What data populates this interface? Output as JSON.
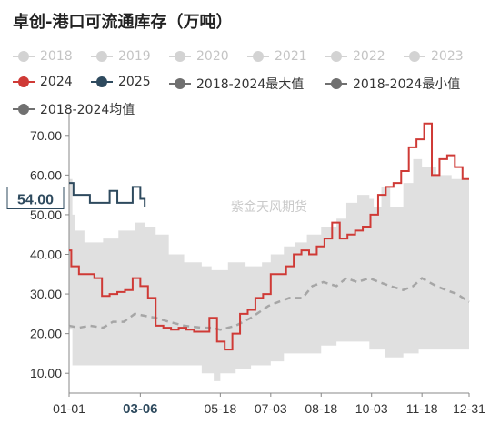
{
  "title": "卓创-港口可流通库存（万吨）",
  "watermark": "紫金天风期货",
  "legend": [
    {
      "label": "2018",
      "color": "#c8c8c8",
      "active": false
    },
    {
      "label": "2019",
      "color": "#c8c8c8",
      "active": false
    },
    {
      "label": "2020",
      "color": "#c8c8c8",
      "active": false
    },
    {
      "label": "2021",
      "color": "#c8c8c8",
      "active": false
    },
    {
      "label": "2022",
      "color": "#c8c8c8",
      "active": false
    },
    {
      "label": "2023",
      "color": "#c8c8c8",
      "active": false
    },
    {
      "label": "2024",
      "color": "#cf3a36",
      "active": true
    },
    {
      "label": "2025",
      "color": "#2e4a5e",
      "active": true
    },
    {
      "label": "2018-2024最大值",
      "color": "#707070",
      "active": true
    },
    {
      "label": "2018-2024最小值",
      "color": "#707070",
      "active": true
    },
    {
      "label": "2018-2024均值",
      "color": "#707070",
      "active": true
    }
  ],
  "chart_data": {
    "type": "line",
    "x_axis": {
      "type": "date",
      "min": "01-01",
      "max": "12-31",
      "tick_labels": [
        "01-01",
        "03-06",
        "05-18",
        "07-03",
        "08-18",
        "10-03",
        "11-18",
        "12-31"
      ],
      "highlight_label": "03-06"
    },
    "y_axis": {
      "min": 5,
      "max": 75,
      "tick_values": [
        10,
        20,
        30,
        40,
        50,
        60,
        70
      ],
      "tick_labels": [
        "10.00",
        "20.00",
        "30.00",
        "40.00",
        "50.00",
        "60.00",
        "70.00"
      ],
      "highlight_value": "54.00"
    },
    "grid": false,
    "series": [
      {
        "name": "2018-2024最大值",
        "style": "band-upper",
        "color": "#e0e0e0",
        "x": [
          "01-01",
          "01-04",
          "01-06",
          "01-15",
          "02-01",
          "02-15",
          "03-01",
          "03-10",
          "03-20",
          "04-01",
          "04-15",
          "05-01",
          "05-10",
          "05-25",
          "06-10",
          "06-25",
          "07-03",
          "07-15",
          "07-25",
          "08-05",
          "08-18",
          "09-01",
          "09-10",
          "09-20",
          "10-01",
          "10-05",
          "10-12",
          "10-20",
          "11-01",
          "11-10",
          "11-18",
          "12-01",
          "12-15",
          "12-31"
        ],
        "y": [
          59,
          50,
          46,
          43,
          44,
          46,
          48,
          47,
          45,
          40,
          38,
          37,
          36,
          38,
          37,
          38,
          40,
          42,
          43,
          45,
          47,
          49,
          53,
          55,
          54,
          52,
          57,
          52,
          58,
          64,
          62,
          60,
          59,
          59
        ]
      },
      {
        "name": "2018-2024最小值",
        "style": "band-lower",
        "color": "#e0e0e0",
        "x": [
          "01-01",
          "01-04",
          "01-20",
          "02-15",
          "03-01",
          "03-15",
          "04-01",
          "04-20",
          "05-01",
          "05-12",
          "05-18",
          "06-01",
          "06-15",
          "07-03",
          "07-15",
          "08-01",
          "08-18",
          "09-01",
          "09-15",
          "10-01",
          "10-15",
          "11-01",
          "11-15",
          "12-01",
          "12-31"
        ],
        "y": [
          21,
          12,
          12,
          12,
          12,
          12,
          12,
          12,
          10,
          8,
          10,
          11,
          12,
          13,
          15,
          15,
          17,
          18,
          18,
          16,
          14,
          15,
          16,
          16,
          17
        ]
      },
      {
        "name": "2018-2024均值",
        "style": "dashed",
        "color": "#a6a6a6",
        "x": [
          "01-01",
          "01-10",
          "01-20",
          "02-01",
          "02-10",
          "02-20",
          "03-01",
          "03-10",
          "03-20",
          "04-01",
          "04-15",
          "05-01",
          "05-10",
          "05-18",
          "06-01",
          "06-15",
          "07-01",
          "07-10",
          "07-20",
          "08-01",
          "08-10",
          "08-20",
          "09-01",
          "09-10",
          "09-20",
          "10-01",
          "10-10",
          "10-20",
          "11-01",
          "11-10",
          "11-18",
          "12-01",
          "12-10",
          "12-20",
          "12-31"
        ],
        "y": [
          22,
          21.5,
          22,
          21.5,
          23,
          23,
          25,
          24.5,
          24,
          23,
          22,
          21.5,
          21.5,
          21,
          22,
          24,
          27,
          28,
          29,
          29,
          32,
          33,
          32,
          34,
          33,
          34,
          33,
          32,
          31,
          32,
          34,
          32,
          31,
          30,
          28
        ]
      },
      {
        "name": "2024",
        "style": "step",
        "color": "#cf3a36",
        "x": [
          "01-01",
          "01-03",
          "01-10",
          "01-17",
          "01-24",
          "01-31",
          "02-07",
          "02-14",
          "02-21",
          "02-28",
          "03-06",
          "03-13",
          "03-20",
          "03-27",
          "04-03",
          "04-10",
          "04-17",
          "04-24",
          "05-01",
          "05-08",
          "05-15",
          "05-22",
          "05-29",
          "06-05",
          "06-12",
          "06-19",
          "06-26",
          "07-03",
          "07-10",
          "07-17",
          "07-24",
          "07-31",
          "08-07",
          "08-14",
          "08-21",
          "08-28",
          "09-04",
          "09-11",
          "09-18",
          "09-25",
          "10-02",
          "10-09",
          "10-16",
          "10-23",
          "10-30",
          "11-06",
          "11-13",
          "11-20",
          "11-27",
          "12-04",
          "12-11",
          "12-18",
          "12-25",
          "12-31"
        ],
        "y": [
          41,
          37,
          35,
          35,
          34,
          29.5,
          30,
          30.5,
          31,
          34,
          32,
          29,
          22,
          21.5,
          21,
          21.5,
          21,
          20.5,
          20.5,
          24,
          18,
          16,
          20,
          25,
          26,
          29,
          30,
          35,
          35,
          37,
          40,
          41,
          40,
          42,
          44,
          48,
          44,
          45,
          46,
          47,
          50,
          55,
          57,
          58,
          61,
          67,
          69,
          73,
          60,
          64,
          65,
          62,
          59,
          59
        ]
      },
      {
        "name": "2025",
        "style": "step",
        "color": "#2e4a5e",
        "x": [
          "01-01",
          "01-05",
          "01-10",
          "01-20",
          "02-01",
          "02-07",
          "02-14",
          "02-21",
          "02-28",
          "03-06",
          "03-10"
        ],
        "y": [
          58,
          55,
          55,
          53,
          53,
          56,
          53,
          53,
          57,
          54,
          52
        ]
      }
    ]
  }
}
